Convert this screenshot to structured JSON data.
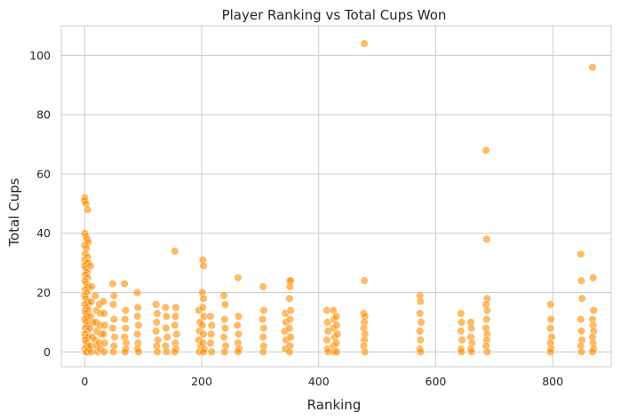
{
  "chart_data": {
    "type": "scatter",
    "title": "Player Ranking vs Total Cups Won",
    "xlabel": "Ranking",
    "ylabel": "Total Cups",
    "xlim": [
      -40,
      900
    ],
    "ylim": [
      -5,
      110
    ],
    "xticks": [
      0,
      200,
      400,
      600,
      800
    ],
    "yticks": [
      0,
      20,
      40,
      60,
      80,
      100
    ],
    "grid": true,
    "point_color": "#ff8c00",
    "point_opacity": 0.6,
    "points": [
      [
        0,
        52
      ],
      [
        0,
        51
      ],
      [
        2,
        50
      ],
      [
        5,
        48
      ],
      [
        0,
        40
      ],
      [
        2,
        39
      ],
      [
        4,
        38
      ],
      [
        0,
        36
      ],
      [
        6,
        37
      ],
      [
        3,
        35
      ],
      [
        1,
        33
      ],
      [
        5,
        32
      ],
      [
        0,
        31
      ],
      [
        3,
        30
      ],
      [
        6,
        30
      ],
      [
        0,
        29
      ],
      [
        2,
        28
      ],
      [
        4,
        27
      ],
      [
        1,
        26
      ],
      [
        5,
        25
      ],
      [
        0,
        24
      ],
      [
        3,
        23
      ],
      [
        6,
        22
      ],
      [
        1,
        21
      ],
      [
        4,
        20
      ],
      [
        0,
        19
      ],
      [
        2,
        18
      ],
      [
        5,
        17
      ],
      [
        7,
        16
      ],
      [
        0,
        16
      ],
      [
        3,
        15
      ],
      [
        1,
        14
      ],
      [
        6,
        14
      ],
      [
        2,
        13
      ],
      [
        4,
        12
      ],
      [
        0,
        11
      ],
      [
        3,
        10
      ],
      [
        5,
        9
      ],
      [
        1,
        8
      ],
      [
        4,
        7
      ],
      [
        0,
        6
      ],
      [
        2,
        5
      ],
      [
        6,
        5
      ],
      [
        1,
        4
      ],
      [
        3,
        3
      ],
      [
        5,
        2
      ],
      [
        0,
        1
      ],
      [
        2,
        0
      ],
      [
        4,
        0
      ],
      [
        7,
        1
      ],
      [
        10,
        29
      ],
      [
        12,
        22
      ],
      [
        11,
        17
      ],
      [
        10,
        12
      ],
      [
        9,
        8
      ],
      [
        13,
        5
      ],
      [
        10,
        2
      ],
      [
        11,
        0
      ],
      [
        14,
        10
      ],
      [
        18,
        19
      ],
      [
        20,
        14
      ],
      [
        19,
        10
      ],
      [
        21,
        7
      ],
      [
        18,
        4
      ],
      [
        20,
        2
      ],
      [
        22,
        0
      ],
      [
        25,
        16
      ],
      [
        27,
        13
      ],
      [
        26,
        9
      ],
      [
        28,
        6
      ],
      [
        25,
        3
      ],
      [
        27,
        1
      ],
      [
        32,
        17
      ],
      [
        33,
        13
      ],
      [
        34,
        9
      ],
      [
        32,
        6
      ],
      [
        34,
        3
      ],
      [
        33,
        0
      ],
      [
        48,
        23
      ],
      [
        50,
        19
      ],
      [
        49,
        16
      ],
      [
        50,
        11
      ],
      [
        48,
        8
      ],
      [
        51,
        5
      ],
      [
        50,
        2
      ],
      [
        49,
        0
      ],
      [
        68,
        23
      ],
      [
        70,
        14
      ],
      [
        69,
        11
      ],
      [
        70,
        8
      ],
      [
        68,
        5
      ],
      [
        71,
        3
      ],
      [
        70,
        1
      ],
      [
        69,
        0
      ],
      [
        90,
        20
      ],
      [
        91,
        15
      ],
      [
        90,
        12
      ],
      [
        92,
        9
      ],
      [
        90,
        6
      ],
      [
        91,
        3
      ],
      [
        90,
        1
      ],
      [
        92,
        0
      ],
      [
        122,
        16
      ],
      [
        124,
        13
      ],
      [
        123,
        10
      ],
      [
        122,
        7
      ],
      [
        125,
        4
      ],
      [
        123,
        2
      ],
      [
        124,
        0
      ],
      [
        138,
        15
      ],
      [
        140,
        12
      ],
      [
        139,
        8
      ],
      [
        141,
        5
      ],
      [
        138,
        2
      ],
      [
        140,
        0
      ],
      [
        154,
        34
      ],
      [
        156,
        15
      ],
      [
        155,
        12
      ],
      [
        154,
        9
      ],
      [
        157,
        6
      ],
      [
        155,
        3
      ],
      [
        156,
        1
      ],
      [
        154,
        0
      ],
      [
        195,
        14
      ],
      [
        197,
        10
      ],
      [
        196,
        7
      ],
      [
        195,
        4
      ],
      [
        198,
        2
      ],
      [
        196,
        0
      ],
      [
        202,
        31
      ],
      [
        203,
        29
      ],
      [
        201,
        20
      ],
      [
        203,
        18
      ],
      [
        202,
        15
      ],
      [
        204,
        12
      ],
      [
        201,
        9
      ],
      [
        203,
        6
      ],
      [
        202,
        3
      ],
      [
        204,
        1
      ],
      [
        203,
        0
      ],
      [
        215,
        12
      ],
      [
        217,
        9
      ],
      [
        216,
        6
      ],
      [
        215,
        3
      ],
      [
        217,
        0
      ],
      [
        238,
        19
      ],
      [
        240,
        16
      ],
      [
        239,
        11
      ],
      [
        240,
        8
      ],
      [
        238,
        5
      ],
      [
        241,
        2
      ],
      [
        239,
        0
      ],
      [
        262,
        25
      ],
      [
        263,
        12
      ],
      [
        261,
        9
      ],
      [
        263,
        6
      ],
      [
        262,
        3
      ],
      [
        264,
        1
      ],
      [
        262,
        0
      ],
      [
        305,
        22
      ],
      [
        306,
        14
      ],
      [
        304,
        11
      ],
      [
        306,
        8
      ],
      [
        305,
        5
      ],
      [
        306,
        2
      ],
      [
        305,
        0
      ],
      [
        343,
        13
      ],
      [
        344,
        10
      ],
      [
        342,
        7
      ],
      [
        344,
        4
      ],
      [
        343,
        1
      ],
      [
        350,
        24
      ],
      [
        352,
        24
      ],
      [
        351,
        22
      ],
      [
        350,
        18
      ],
      [
        352,
        14
      ],
      [
        351,
        11
      ],
      [
        350,
        8
      ],
      [
        352,
        5
      ],
      [
        351,
        2
      ],
      [
        350,
        0
      ],
      [
        414,
        14
      ],
      [
        415,
        10
      ],
      [
        416,
        7
      ],
      [
        414,
        4
      ],
      [
        415,
        1
      ],
      [
        416,
        0
      ],
      [
        425,
        14
      ],
      [
        426,
        11
      ],
      [
        425,
        8
      ],
      [
        427,
        5
      ],
      [
        425,
        2
      ],
      [
        426,
        0
      ],
      [
        430,
        12
      ],
      [
        431,
        9
      ],
      [
        432,
        6
      ],
      [
        430,
        3
      ],
      [
        431,
        0
      ],
      [
        478,
        104
      ],
      [
        478,
        24
      ],
      [
        477,
        13
      ],
      [
        479,
        12
      ],
      [
        478,
        10
      ],
      [
        477,
        8
      ],
      [
        479,
        6
      ],
      [
        478,
        4
      ],
      [
        477,
        2
      ],
      [
        479,
        0
      ],
      [
        573,
        19
      ],
      [
        574,
        17
      ],
      [
        573,
        13
      ],
      [
        575,
        10
      ],
      [
        573,
        7
      ],
      [
        574,
        4
      ],
      [
        573,
        1
      ],
      [
        574,
        0
      ],
      [
        643,
        13
      ],
      [
        644,
        10
      ],
      [
        643,
        7
      ],
      [
        645,
        4
      ],
      [
        643,
        1
      ],
      [
        644,
        0
      ],
      [
        660,
        10
      ],
      [
        661,
        8
      ],
      [
        660,
        5
      ],
      [
        662,
        3
      ],
      [
        660,
        1
      ],
      [
        661,
        0
      ],
      [
        686,
        68
      ],
      [
        687,
        38
      ],
      [
        688,
        18
      ],
      [
        686,
        16
      ],
      [
        688,
        14
      ],
      [
        687,
        11
      ],
      [
        686,
        8
      ],
      [
        688,
        6
      ],
      [
        687,
        4
      ],
      [
        686,
        2
      ],
      [
        688,
        0
      ],
      [
        796,
        16
      ],
      [
        797,
        11
      ],
      [
        796,
        8
      ],
      [
        798,
        5
      ],
      [
        796,
        3
      ],
      [
        797,
        1
      ],
      [
        796,
        0
      ],
      [
        848,
        33
      ],
      [
        849,
        24
      ],
      [
        850,
        18
      ],
      [
        848,
        11
      ],
      [
        849,
        7
      ],
      [
        850,
        4
      ],
      [
        848,
        2
      ],
      [
        849,
        0
      ],
      [
        868,
        96
      ],
      [
        869,
        25
      ],
      [
        870,
        14
      ],
      [
        868,
        11
      ],
      [
        869,
        9
      ],
      [
        870,
        7
      ],
      [
        868,
        5
      ],
      [
        869,
        3
      ],
      [
        870,
        1
      ],
      [
        868,
        0
      ]
    ]
  }
}
